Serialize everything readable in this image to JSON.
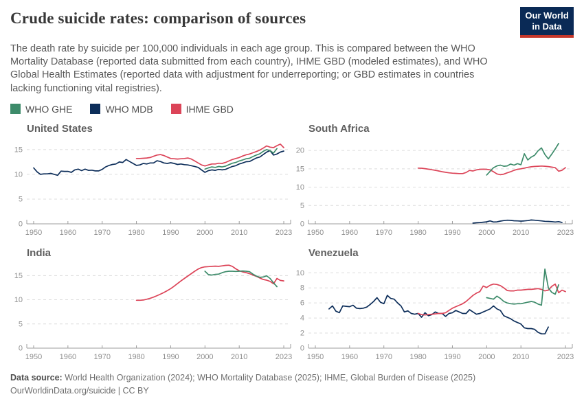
{
  "header": {
    "title": "Crude suicide rates: comparison of sources",
    "logo": {
      "line1": "Our World",
      "line2": "in Data",
      "bg_color": "#0a2a56",
      "stripe_color": "#c5372a"
    }
  },
  "subtitle": "The death rate by suicide per 100,000 individuals in each age group. This is compared between the WHO Mortality Database (reported data submitted from each country), IHME GBD (modeled estimates), and WHO Global Health Estimates (reported data with adjustment for underreporting; or GBD estimates in countries lacking functioning vital registries).",
  "legend": {
    "items": [
      {
        "label": "WHO GHE",
        "color": "#3d8b6a"
      },
      {
        "label": "WHO MDB",
        "color": "#0d2e5a"
      },
      {
        "label": "IHME GBD",
        "color": "#dc4458"
      }
    ]
  },
  "chart_style": {
    "grid_color": "#dcdcdc",
    "axis_color": "#9c9c9c",
    "tick_label_color": "#8f8f8f"
  },
  "chart_data": [
    {
      "type": "line",
      "title": "United States",
      "xlim": [
        1948,
        2025
      ],
      "ylim": [
        0,
        17.2
      ],
      "xticks": [
        1950,
        1960,
        1970,
        1980,
        1990,
        2000,
        2010,
        2023
      ],
      "yticks": [
        0,
        5,
        10,
        15
      ],
      "series": [
        {
          "name": "WHO MDB",
          "color": "#0d2e5a",
          "start_year": 1950,
          "values": [
            11.3,
            10.5,
            10.0,
            10.1,
            10.1,
            10.2,
            10.0,
            9.8,
            10.65,
            10.6,
            10.6,
            10.4,
            10.9,
            11.05,
            10.75,
            11.05,
            10.8,
            10.85,
            10.7,
            10.7,
            11.0,
            11.5,
            11.8,
            12.0,
            12.1,
            12.5,
            12.4,
            13.0,
            12.6,
            12.2,
            11.8,
            11.9,
            12.2,
            12.1,
            12.3,
            12.3,
            12.75,
            12.6,
            12.3,
            12.2,
            12.35,
            12.2,
            12.0,
            12.1,
            11.95,
            11.9,
            11.75,
            11.6,
            11.4,
            10.9,
            10.4,
            10.75,
            10.9,
            10.8,
            11.0,
            10.9,
            11.0,
            11.3,
            11.6,
            11.75,
            12.1,
            12.3,
            12.55,
            12.6,
            12.95,
            13.3,
            13.5,
            14.0,
            14.5,
            14.8,
            13.9,
            14.1,
            14.5,
            14.7
          ]
        },
        {
          "name": "IHME GBD",
          "color": "#dc4458",
          "start_year": 1980,
          "values": [
            13.2,
            13.2,
            13.25,
            13.3,
            13.4,
            13.65,
            13.9,
            14.0,
            13.8,
            13.5,
            13.2,
            13.15,
            13.1,
            13.15,
            13.2,
            13.3,
            13.1,
            12.7,
            12.3,
            11.9,
            11.7,
            11.9,
            12.1,
            12.1,
            12.25,
            12.2,
            12.4,
            12.7,
            13.0,
            13.2,
            13.4,
            13.7,
            13.95,
            14.1,
            14.35,
            14.6,
            14.9,
            15.3,
            15.75,
            15.5,
            15.4,
            15.8,
            16.1,
            15.4
          ]
        },
        {
          "name": "WHO GHE",
          "color": "#3d8b6a",
          "start_year": 2000,
          "values": [
            11.05,
            11.3,
            11.5,
            11.4,
            11.6,
            11.5,
            11.65,
            11.95,
            12.25,
            12.4,
            12.7,
            12.9,
            13.15,
            13.25,
            13.6,
            13.9,
            14.15,
            14.65,
            15.0,
            14.8,
            14.3,
            15.2
          ]
        }
      ]
    },
    {
      "type": "line",
      "title": "South Africa",
      "xlim": [
        1948,
        2025
      ],
      "ylim": [
        0,
        23.2
      ],
      "xticks": [
        1950,
        1960,
        1970,
        1980,
        1990,
        2000,
        2010,
        2023
      ],
      "yticks": [
        0,
        5,
        10,
        15,
        20
      ],
      "series": [
        {
          "name": "WHO MDB",
          "color": "#0d2e5a",
          "start_year": 1996,
          "values": [
            0.2,
            0.3,
            0.35,
            0.45,
            0.55,
            0.8,
            0.5,
            0.55,
            0.75,
            0.9,
            1.0,
            0.95,
            0.85,
            0.8,
            0.75,
            0.8,
            0.9,
            1.05,
            1.0,
            0.9,
            0.8,
            0.7,
            0.65,
            0.6,
            0.5,
            0.6,
            0.4
          ]
        },
        {
          "name": "IHME GBD",
          "color": "#dc4458",
          "start_year": 1980,
          "values": [
            15.2,
            15.15,
            15.05,
            14.9,
            14.75,
            14.6,
            14.4,
            14.2,
            14.05,
            13.9,
            13.8,
            13.75,
            13.7,
            13.7,
            14.0,
            14.55,
            14.4,
            14.7,
            14.85,
            14.9,
            14.85,
            14.7,
            14.2,
            13.6,
            13.4,
            13.55,
            13.9,
            14.2,
            14.6,
            14.85,
            15.0,
            15.2,
            15.4,
            15.55,
            15.65,
            15.7,
            15.75,
            15.7,
            15.6,
            15.45,
            15.3,
            14.35,
            14.6,
            15.3
          ]
        },
        {
          "name": "WHO GHE",
          "color": "#3d8b6a",
          "start_year": 2000,
          "values": [
            13.3,
            14.3,
            15.3,
            15.8,
            16.0,
            15.7,
            15.8,
            16.3,
            16.0,
            16.4,
            16.1,
            19.1,
            17.4,
            18.2,
            18.7,
            19.9,
            20.7,
            18.9,
            17.7,
            19.0,
            20.4,
            21.9
          ]
        }
      ]
    },
    {
      "type": "line",
      "title": "India",
      "xlim": [
        1948,
        2025
      ],
      "ylim": [
        0,
        17.6
      ],
      "xticks": [
        1950,
        1960,
        1970,
        1980,
        1990,
        2000,
        2010,
        2023
      ],
      "yticks": [
        0,
        5,
        10,
        15
      ],
      "series": [
        {
          "name": "IHME GBD",
          "color": "#dc4458",
          "start_year": 1980,
          "values": [
            9.9,
            9.9,
            9.95,
            10.1,
            10.3,
            10.55,
            10.85,
            11.15,
            11.5,
            11.9,
            12.3,
            12.8,
            13.35,
            13.9,
            14.4,
            14.9,
            15.4,
            15.9,
            16.35,
            16.65,
            16.8,
            16.85,
            16.9,
            16.95,
            16.9,
            17.0,
            17.1,
            17.15,
            16.9,
            16.4,
            16.0,
            15.75,
            15.6,
            15.4,
            15.1,
            14.85,
            14.5,
            14.2,
            14.05,
            13.8,
            13.3,
            14.4,
            14.0,
            13.9
          ]
        },
        {
          "name": "WHO GHE",
          "color": "#3d8b6a",
          "start_year": 2000,
          "values": [
            15.9,
            15.2,
            15.1,
            15.25,
            15.3,
            15.6,
            15.8,
            15.9,
            15.9,
            15.85,
            15.9,
            15.95,
            15.9,
            15.8,
            15.3,
            14.9,
            14.65,
            14.7,
            14.95,
            14.4,
            13.5,
            12.7
          ]
        }
      ]
    },
    {
      "type": "line",
      "title": "Venezuela",
      "xlim": [
        1948,
        2025
      ],
      "ylim": [
        0,
        11.3
      ],
      "xticks": [
        1950,
        1960,
        1970,
        1980,
        1990,
        2000,
        2010,
        2023
      ],
      "yticks": [
        0,
        2,
        4,
        6,
        8,
        10
      ],
      "series": [
        {
          "name": "WHO MDB",
          "color": "#0d2e5a",
          "start_year": 1954,
          "values": [
            5.2,
            5.6,
            4.9,
            4.7,
            5.6,
            5.55,
            5.5,
            5.7,
            5.3,
            5.25,
            5.3,
            5.45,
            5.8,
            6.2,
            6.7,
            6.1,
            5.9,
            7.0,
            6.6,
            6.5,
            6.0,
            5.6,
            4.8,
            4.95,
            4.6,
            4.5,
            4.6,
            4.1,
            4.7,
            4.3,
            4.45,
            4.8,
            4.6,
            4.6,
            4.2,
            4.6,
            4.7,
            5.0,
            4.8,
            4.6,
            4.6,
            5.1,
            4.8,
            4.5,
            4.6,
            4.8,
            5.0,
            5.2,
            5.6,
            5.2,
            5.0,
            4.3,
            4.1,
            3.9,
            3.6,
            3.4,
            3.2,
            2.7,
            2.6,
            2.6,
            2.5,
            2.1,
            1.9,
            1.9,
            2.8
          ]
        },
        {
          "name": "IHME GBD",
          "color": "#dc4458",
          "start_year": 1980,
          "values": [
            4.6,
            4.45,
            4.4,
            4.45,
            4.5,
            4.55,
            4.6,
            4.6,
            4.7,
            5.0,
            5.3,
            5.5,
            5.7,
            5.9,
            6.2,
            6.6,
            7.0,
            7.3,
            7.5,
            8.25,
            8.05,
            8.35,
            8.5,
            8.45,
            8.3,
            8.0,
            7.65,
            7.6,
            7.6,
            7.7,
            7.7,
            7.75,
            7.8,
            7.8,
            7.85,
            7.9,
            7.8,
            7.6,
            7.7,
            8.2,
            8.5,
            7.35,
            7.7,
            7.5
          ]
        },
        {
          "name": "WHO GHE",
          "color": "#3d8b6a",
          "start_year": 2000,
          "values": [
            6.7,
            6.6,
            6.5,
            6.9,
            6.6,
            6.2,
            6.0,
            5.9,
            5.85,
            5.9,
            5.9,
            6.0,
            6.1,
            6.2,
            6.1,
            5.85,
            5.7,
            10.5,
            8.0,
            7.4,
            7.15,
            8.4
          ]
        }
      ]
    }
  ],
  "footer": {
    "source_label": "Data source:",
    "source_text": " World Health Organization (2024); WHO Mortality Database (2025); IHME, Global Burden of Disease (2025)",
    "link_text": "OurWorldinData.org/suicide",
    "license_text": " | CC BY"
  }
}
